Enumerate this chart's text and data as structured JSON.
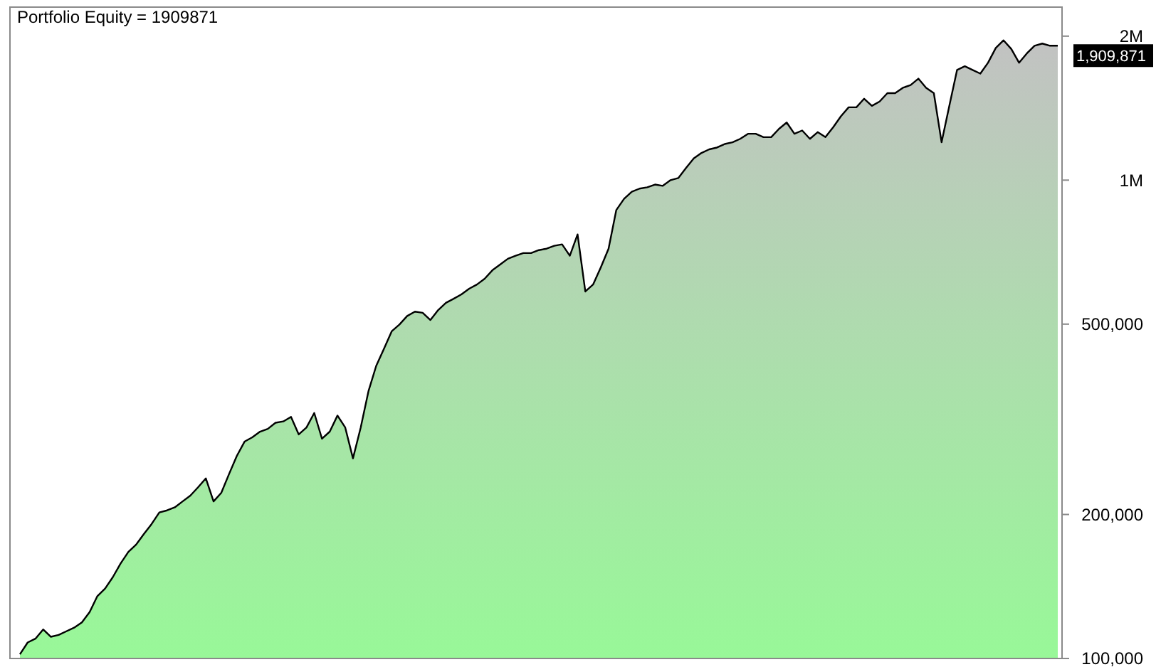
{
  "chart_data": {
    "type": "area",
    "title": "Portfolio Equity = 1909871",
    "log": "y",
    "ylim": [
      100000,
      2300000
    ],
    "yticks": [
      {
        "value": 100000,
        "label": "100,000"
      },
      {
        "value": 200000,
        "label": "200,000"
      },
      {
        "value": 500000,
        "label": "500,000"
      },
      {
        "value": 1000000,
        "label": "1M"
      },
      {
        "value": 2000000,
        "label": "2M"
      }
    ],
    "grid": false,
    "categories": [
      null,
      null,
      null,
      null,
      null,
      null,
      null,
      null,
      null,
      null,
      null,
      null,
      null,
      null,
      null,
      null,
      null,
      null,
      null,
      null,
      null,
      null,
      null,
      null,
      null,
      null,
      null,
      null,
      null,
      null,
      null,
      null,
      null,
      null,
      null,
      null,
      null,
      null,
      null,
      null,
      null,
      null,
      null,
      null,
      null,
      null,
      null,
      null,
      null,
      null,
      null,
      null,
      null,
      null,
      null,
      null,
      null,
      null,
      null,
      null,
      null,
      null,
      null,
      null,
      null,
      null,
      null,
      null,
      null,
      null,
      null,
      null,
      null,
      null,
      null,
      null,
      null,
      null,
      null,
      null,
      null,
      null,
      null,
      null,
      null,
      null,
      null,
      null,
      null,
      null,
      null,
      null,
      null,
      null,
      null,
      null,
      null,
      null,
      null,
      null,
      null,
      null,
      null,
      null,
      null,
      null,
      null,
      null,
      null,
      null,
      null,
      null,
      null,
      null,
      null,
      null,
      null,
      null,
      null,
      null,
      null,
      null,
      null,
      null,
      null,
      null,
      null,
      null,
      null,
      null,
      null,
      null,
      null,
      null,
      null
    ],
    "series": [
      {
        "color": "#000000",
        "values": [
          102000,
          108000,
          110000,
          115000,
          111000,
          112000,
          114000,
          116000,
          119000,
          125000,
          135000,
          140000,
          148000,
          158000,
          167000,
          173000,
          182000,
          191000,
          202000,
          204000,
          207000,
          213000,
          219000,
          228000,
          238000,
          213000,
          222000,
          243000,
          265000,
          284000,
          290000,
          298000,
          302000,
          311000,
          313000,
          320000,
          294000,
          304000,
          326000,
          288000,
          298000,
          322000,
          304000,
          262000,
          304000,
          362000,
          409000,
          444000,
          483000,
          499000,
          520000,
          531000,
          528000,
          510000,
          535000,
          554000,
          565000,
          577000,
          593000,
          605000,
          622000,
          648000,
          666000,
          685000,
          695000,
          704000,
          704000,
          714000,
          719000,
          729000,
          734000,
          695000,
          770000,
          585000,
          605000,
          657000,
          719000,
          866000,
          914000,
          946000,
          960000,
          966000,
          979000,
          973000,
          1000000,
          1010000,
          1060000,
          1110000,
          1140000,
          1160000,
          1170000,
          1190000,
          1200000,
          1220000,
          1250000,
          1250000,
          1230000,
          1230000,
          1280000,
          1320000,
          1250000,
          1270000,
          1220000,
          1260000,
          1230000,
          1290000,
          1360000,
          1420000,
          1420000,
          1480000,
          1430000,
          1460000,
          1520000,
          1520000,
          1560000,
          1580000,
          1630000,
          1560000,
          1520000,
          1200000,
          1430000,
          1700000,
          1730000,
          1700000,
          1670000,
          1760000,
          1890000,
          1960000,
          1880000,
          1760000,
          1840000,
          1910000,
          1930000,
          1910000,
          1909871
        ]
      }
    ],
    "annotations": [
      "1,909,871"
    ]
  }
}
